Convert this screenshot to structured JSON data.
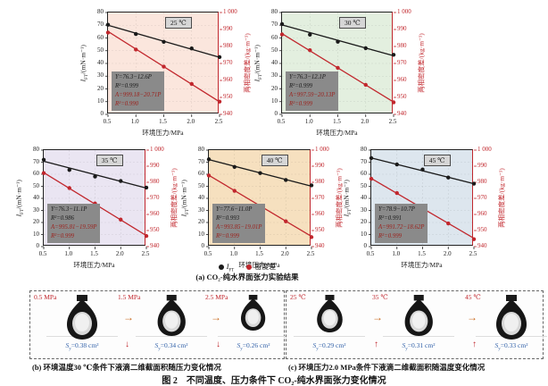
{
  "page": {
    "legend": [
      {
        "marker_color": "#1a1a1a",
        "label_pre": "I",
        "label_sub": "FT",
        "label_post": ""
      },
      {
        "marker_color": "#c1272d",
        "label_pre": "",
        "label_sub": "",
        "label_post": "密度差"
      }
    ],
    "captions": {
      "a": "(a) CO₂-纯水界面张力实验结果",
      "b": "(b) 环境温度30 ℃条件下液滴二维截面积随压力变化情况",
      "c": "(c) 环境压力2.0 MPa条件下液滴二维截面积随温度变化情况",
      "main": "图 2　不同温度、压力条件下 CO₂-纯水界面张力变化情况"
    }
  },
  "chart_data": [
    {
      "type": "line",
      "temperature_label": "25 ℃",
      "bg_color": "#fbe6dd",
      "xlabel": "环境压力/MPa",
      "xlim": [
        0.5,
        2.5
      ],
      "x": [
        0.5,
        1.0,
        1.5,
        2.0,
        2.5
      ],
      "x_tick_labels": [
        "0.5",
        "1.0",
        "1.5",
        "2.0",
        "2.5"
      ],
      "left_axis": {
        "label_pre": "I",
        "label_sub": "FT",
        "label_post": "/(mN·m⁻¹)",
        "lim": [
          0,
          80
        ],
        "ticks": [
          0,
          10,
          20,
          30,
          40,
          50,
          60,
          70,
          80
        ]
      },
      "right_axis": {
        "label": "两相密度差/(kg·m⁻³)",
        "lim": [
          940,
          1000
        ],
        "ticks": [
          940,
          950,
          960,
          970,
          980,
          990,
          1000
        ],
        "tick_labels": [
          "940",
          "950",
          "960",
          "970",
          "980",
          "990",
          "1 000"
        ]
      },
      "series": [
        {
          "name": "IFT",
          "axis": "left",
          "color": "#1a1a1a",
          "values": [
            70.4,
            63.1,
            57.0,
            51.8,
            45.0
          ],
          "fit_intercept": 76.3,
          "fit_slope": -12.6
        },
        {
          "name": "密度差",
          "axis": "right",
          "color": "#c1272d",
          "values": [
            988.2,
            978.2,
            968.1,
            957.9,
            947.5
          ],
          "fit_intercept": 999.18,
          "fit_slope": -20.71
        }
      ],
      "annotation": [
        {
          "text": "Y=76.3−12.6P",
          "color": "#1a1a1a"
        },
        {
          "text": "R²=0.999",
          "color": "#1a1a1a"
        },
        {
          "text": "A=999.18−20.71P",
          "color": "#9c1f1a"
        },
        {
          "text": "R²=0.990",
          "color": "#9c1f1a"
        }
      ]
    },
    {
      "type": "line",
      "temperature_label": "30 ℃",
      "bg_color": "#e3efdf",
      "xlabel": "环境压力/MPa",
      "xlim": [
        0.5,
        2.5
      ],
      "x": [
        0.5,
        1.0,
        1.5,
        2.0,
        2.5
      ],
      "x_tick_labels": [
        "0.5",
        "1.0",
        "1.5",
        "2.0",
        "2.5"
      ],
      "left_axis": {
        "label_pre": "I",
        "label_sub": "FT",
        "label_post": "/(mN·m⁻¹)",
        "lim": [
          0,
          80
        ],
        "ticks": [
          0,
          10,
          20,
          30,
          40,
          50,
          60,
          70,
          80
        ]
      },
      "right_axis": {
        "label": "两相密度差/(kg·m⁻³)",
        "lim": [
          940,
          1000
        ],
        "ticks": [
          940,
          950,
          960,
          970,
          980,
          990,
          1000
        ],
        "tick_labels": [
          "940",
          "950",
          "960",
          "970",
          "980",
          "990",
          "1 000"
        ]
      },
      "series": [
        {
          "name": "IFT",
          "axis": "left",
          "color": "#1a1a1a",
          "values": [
            70.9,
            62.6,
            57.1,
            52.0,
            46.8
          ],
          "fit_intercept": 76.3,
          "fit_slope": -12.1
        },
        {
          "name": "密度差",
          "axis": "right",
          "color": "#c1272d",
          "values": [
            987.1,
            977.8,
            967.4,
            957.4,
            947.1
          ],
          "fit_intercept": 997.59,
          "fit_slope": -20.13
        }
      ],
      "annotation": [
        {
          "text": "Y=76.3−12.1P",
          "color": "#1a1a1a"
        },
        {
          "text": "R²=0.999",
          "color": "#1a1a1a"
        },
        {
          "text": "A=997.59−20.13P",
          "color": "#9c1f1a"
        },
        {
          "text": "R²=0.999",
          "color": "#9c1f1a"
        }
      ]
    },
    {
      "type": "line",
      "temperature_label": "35 ℃",
      "bg_color": "#eae5f2",
      "xlabel": "环境压力/MPa",
      "xlim": [
        0.5,
        2.5
      ],
      "x": [
        0.5,
        1.0,
        1.5,
        2.0,
        2.5
      ],
      "x_tick_labels": [
        "0.5",
        "1.0",
        "1.5",
        "2.0",
        "2.5"
      ],
      "left_axis": {
        "label_pre": "I",
        "label_sub": "FT",
        "label_post": "/(mN·m⁻¹)",
        "lim": [
          0,
          80
        ],
        "ticks": [
          0,
          10,
          20,
          30,
          40,
          50,
          60,
          70,
          80
        ]
      },
      "right_axis": {
        "label": "两相密度差/(kg·m⁻³)",
        "lim": [
          940,
          1000
        ],
        "ticks": [
          940,
          950,
          960,
          970,
          980,
          990,
          1000
        ],
        "tick_labels": [
          "940",
          "950",
          "960",
          "970",
          "980",
          "990",
          "1 000"
        ]
      },
      "series": [
        {
          "name": "IFT",
          "axis": "left",
          "color": "#1a1a1a",
          "values": [
            72.0,
            63.6,
            58.1,
            54.4,
            48.9
          ],
          "fit_intercept": 76.3,
          "fit_slope": -11.1
        },
        {
          "name": "密度差",
          "axis": "right",
          "color": "#c1272d",
          "values": [
            985.7,
            976.4,
            966.8,
            956.8,
            946.6
          ],
          "fit_intercept": 995.81,
          "fit_slope": -19.59
        }
      ],
      "annotation": [
        {
          "text": "Y=76.3−11.1P",
          "color": "#1a1a1a"
        },
        {
          "text": "R²=0.986",
          "color": "#1a1a1a"
        },
        {
          "text": "A=995.81−19.59P",
          "color": "#9c1f1a"
        },
        {
          "text": "R²=0.999",
          "color": "#9c1f1a"
        }
      ]
    },
    {
      "type": "line",
      "temperature_label": "40 ℃",
      "bg_color": "#f6e0bf",
      "xlabel": "环境压力/MPa",
      "xlim": [
        0.5,
        2.5
      ],
      "x": [
        0.5,
        1.0,
        1.5,
        2.0,
        2.5
      ],
      "x_tick_labels": [
        "0.5",
        "1.0",
        "1.5",
        "2.0",
        "2.5"
      ],
      "left_axis": {
        "label_pre": "I",
        "label_sub": "FT",
        "label_post": "/(mN·m⁻¹)",
        "lim": [
          0,
          80
        ],
        "ticks": [
          0,
          10,
          20,
          30,
          40,
          50,
          60,
          70,
          80
        ]
      },
      "right_axis": {
        "label": "两相密度差/(kg·m⁻³)",
        "lim": [
          940,
          1000
        ],
        "ticks": [
          940,
          950,
          960,
          970,
          980,
          990,
          1000
        ],
        "tick_labels": [
          "940",
          "950",
          "960",
          "970",
          "980",
          "990",
          "1 000"
        ]
      },
      "series": [
        {
          "name": "IFT",
          "axis": "left",
          "color": "#1a1a1a",
          "values": [
            72.4,
            66.1,
            61.0,
            55.2,
            50.8
          ],
          "fit_intercept": 77.6,
          "fit_slope": -11.0
        },
        {
          "name": "密度差",
          "axis": "right",
          "color": "#c1272d",
          "values": [
            984.2,
            974.7,
            965.3,
            955.7,
            945.9
          ],
          "fit_intercept": 993.85,
          "fit_slope": -19.01
        }
      ],
      "annotation": [
        {
          "text": "Y=77.6−11.0P",
          "color": "#1a1a1a"
        },
        {
          "text": "R²=0.993",
          "color": "#1a1a1a"
        },
        {
          "text": "A=993.85−19.01P",
          "color": "#9c1f1a"
        },
        {
          "text": "R²=0.999",
          "color": "#9c1f1a"
        }
      ]
    },
    {
      "type": "line",
      "temperature_label": "45 ℃",
      "bg_color": "#dde6ee",
      "xlabel": "环境压力/MPa",
      "xlim": [
        0.5,
        2.5
      ],
      "x": [
        0.5,
        1.0,
        1.5,
        2.0,
        2.5
      ],
      "x_tick_labels": [
        "0.5",
        "1.0",
        "1.5",
        "2.0",
        "2.5"
      ],
      "left_axis": {
        "label_pre": "I",
        "label_sub": "FT",
        "label_post": "/(mN·m⁻¹)",
        "lim": [
          0,
          80
        ],
        "ticks": [
          0,
          10,
          20,
          30,
          40,
          50,
          60,
          70,
          80
        ]
      },
      "right_axis": {
        "label": "两相密度差/(kg·m⁻³)",
        "lim": [
          940,
          1000
        ],
        "ticks": [
          940,
          950,
          960,
          970,
          980,
          990,
          1000
        ],
        "tick_labels": [
          "940",
          "950",
          "960",
          "970",
          "980",
          "990",
          "1 000"
        ]
      },
      "series": [
        {
          "name": "IFT",
          "axis": "left",
          "color": "#1a1a1a",
          "values": [
            73.4,
            68.1,
            63.9,
            57.3,
            52.2
          ],
          "fit_intercept": 78.9,
          "fit_slope": -10.7
        },
        {
          "name": "密度差",
          "axis": "right",
          "color": "#c1272d",
          "values": [
            982.2,
            973.3,
            964.3,
            954.4,
            944.6
          ],
          "fit_intercept": 991.72,
          "fit_slope": -18.62
        }
      ],
      "annotation": [
        {
          "text": "Y=78.9−10.7P",
          "color": "#1a1a1a"
        },
        {
          "text": "R²=0.991",
          "color": "#1a1a1a"
        },
        {
          "text": "A=991.72−18.62P",
          "color": "#9c1f1a"
        },
        {
          "text": "R²=0.999",
          "color": "#9c1f1a"
        }
      ]
    }
  ],
  "droplet_panels": [
    {
      "id": "b",
      "items": [
        {
          "top_label": "0.5 MPa",
          "s_pre": "S",
          "s_sub": "y",
          "s_post": "=0.38 cm²",
          "scale": 1.0
        },
        {
          "top_label": "1.5 MPa",
          "s_pre": "S",
          "s_sub": "y",
          "s_post": "=0.34 cm²",
          "scale": 0.92
        },
        {
          "top_label": "2.5 MPa",
          "s_pre": "S",
          "s_sub": "y",
          "s_post": "=0.26 cm²",
          "scale": 0.8
        }
      ],
      "flow_arrow": "→",
      "flow_arrow_color": "#c96a1f",
      "s_arrow": "↓",
      "s_arrow_color": "#c1272d"
    },
    {
      "id": "c",
      "items": [
        {
          "top_label": "25 ℃",
          "s_pre": "S",
          "s_sub": "y",
          "s_post": "=0.29 cm²",
          "scale": 0.84
        },
        {
          "top_label": "35 ℃",
          "s_pre": "S",
          "s_sub": "y",
          "s_post": "=0.31 cm²",
          "scale": 0.92
        },
        {
          "top_label": "45 ℃",
          "s_pre": "S",
          "s_sub": "y",
          "s_post": "=0.33 cm²",
          "scale": 1.0
        }
      ],
      "flow_arrow": "→",
      "flow_arrow_color": "#c96a1f",
      "s_arrow": "↑",
      "s_arrow_color": "#c1272d"
    }
  ]
}
